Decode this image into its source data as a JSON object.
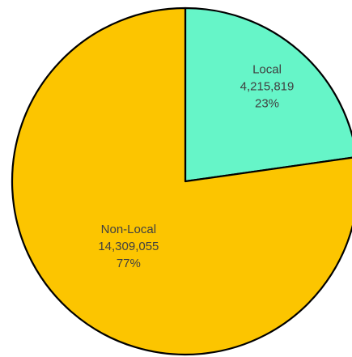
{
  "chart_data": {
    "type": "pie",
    "categories": [
      "Local",
      "Non-Local"
    ],
    "values": [
      4215819,
      14309055
    ],
    "value_labels": [
      "4,215,819",
      "14,309,055"
    ],
    "percent_labels": [
      "23%",
      "77%"
    ],
    "colors": [
      "#66f5c8",
      "#fcc500"
    ]
  }
}
